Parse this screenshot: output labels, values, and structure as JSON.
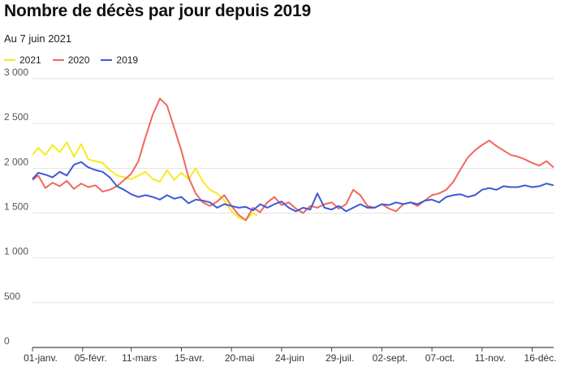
{
  "title": "Nombre de décès par jour depuis 2019",
  "subtitle": "Au 7 juin 2021",
  "chart_data": {
    "type": "line",
    "title": "Nombre de décès par jour depuis 2019",
    "subtitle": "Au 7 juin 2021",
    "xlabel": "",
    "ylabel": "",
    "ylim": [
      0,
      3000
    ],
    "yticks": [
      0,
      500,
      1000,
      1500,
      2000,
      2500,
      3000
    ],
    "ytick_labels": [
      "0",
      "500",
      "1 000",
      "1 500",
      "2 000",
      "2 500",
      "3 000"
    ],
    "xlim": [
      1,
      365
    ],
    "xticks": [
      1,
      36,
      70,
      105,
      140,
      175,
      210,
      245,
      280,
      315,
      350
    ],
    "xtick_labels": [
      "01-janv.",
      "05-févr.",
      "11-mars",
      "15-avr.",
      "20-mai",
      "24-juin",
      "29-juil.",
      "02-sept.",
      "07-oct.",
      "11-nov.",
      "16-déc."
    ],
    "grid": "horizontal",
    "legend": "top-left",
    "series": [
      {
        "name": "2021",
        "color": "#f5ec1e",
        "points": [
          [
            1,
            2150
          ],
          [
            5,
            2230
          ],
          [
            10,
            2150
          ],
          [
            15,
            2260
          ],
          [
            20,
            2180
          ],
          [
            25,
            2290
          ],
          [
            30,
            2130
          ],
          [
            35,
            2270
          ],
          [
            40,
            2100
          ],
          [
            45,
            2080
          ],
          [
            50,
            2060
          ],
          [
            55,
            1980
          ],
          [
            60,
            1920
          ],
          [
            65,
            1900
          ],
          [
            70,
            1880
          ],
          [
            75,
            1920
          ],
          [
            80,
            1960
          ],
          [
            85,
            1880
          ],
          [
            90,
            1850
          ],
          [
            95,
            1980
          ],
          [
            100,
            1870
          ],
          [
            105,
            1950
          ],
          [
            110,
            1880
          ],
          [
            115,
            2000
          ],
          [
            120,
            1850
          ],
          [
            125,
            1760
          ],
          [
            130,
            1720
          ],
          [
            135,
            1640
          ],
          [
            140,
            1520
          ],
          [
            145,
            1450
          ],
          [
            150,
            1420
          ],
          [
            155,
            1500
          ],
          [
            158,
            1470
          ]
        ]
      },
      {
        "name": "2020",
        "color": "#f2665e",
        "points": [
          [
            1,
            1870
          ],
          [
            5,
            1920
          ],
          [
            10,
            1780
          ],
          [
            15,
            1840
          ],
          [
            20,
            1800
          ],
          [
            25,
            1860
          ],
          [
            30,
            1770
          ],
          [
            35,
            1830
          ],
          [
            40,
            1790
          ],
          [
            45,
            1810
          ],
          [
            50,
            1740
          ],
          [
            55,
            1760
          ],
          [
            60,
            1800
          ],
          [
            65,
            1870
          ],
          [
            70,
            1940
          ],
          [
            75,
            2080
          ],
          [
            80,
            2350
          ],
          [
            85,
            2600
          ],
          [
            90,
            2780
          ],
          [
            95,
            2700
          ],
          [
            100,
            2450
          ],
          [
            105,
            2200
          ],
          [
            110,
            1900
          ],
          [
            115,
            1720
          ],
          [
            120,
            1620
          ],
          [
            125,
            1580
          ],
          [
            130,
            1630
          ],
          [
            135,
            1700
          ],
          [
            140,
            1580
          ],
          [
            145,
            1480
          ],
          [
            150,
            1420
          ],
          [
            155,
            1560
          ],
          [
            160,
            1510
          ],
          [
            165,
            1620
          ],
          [
            170,
            1680
          ],
          [
            175,
            1590
          ],
          [
            180,
            1620
          ],
          [
            185,
            1550
          ],
          [
            190,
            1500
          ],
          [
            195,
            1580
          ],
          [
            200,
            1560
          ],
          [
            205,
            1600
          ],
          [
            210,
            1620
          ],
          [
            215,
            1550
          ],
          [
            220,
            1600
          ],
          [
            225,
            1760
          ],
          [
            230,
            1700
          ],
          [
            235,
            1580
          ],
          [
            240,
            1560
          ],
          [
            245,
            1600
          ],
          [
            250,
            1550
          ],
          [
            255,
            1520
          ],
          [
            260,
            1600
          ],
          [
            265,
            1620
          ],
          [
            270,
            1580
          ],
          [
            275,
            1640
          ],
          [
            280,
            1700
          ],
          [
            285,
            1720
          ],
          [
            290,
            1760
          ],
          [
            295,
            1850
          ],
          [
            300,
            1990
          ],
          [
            305,
            2120
          ],
          [
            310,
            2200
          ],
          [
            315,
            2260
          ],
          [
            320,
            2310
          ],
          [
            325,
            2250
          ],
          [
            330,
            2200
          ],
          [
            335,
            2150
          ],
          [
            340,
            2130
          ],
          [
            345,
            2100
          ],
          [
            350,
            2060
          ],
          [
            355,
            2030
          ],
          [
            360,
            2080
          ],
          [
            365,
            2010
          ]
        ]
      },
      {
        "name": "2019",
        "color": "#3d5ad6",
        "points": [
          [
            1,
            1880
          ],
          [
            5,
            1950
          ],
          [
            10,
            1930
          ],
          [
            15,
            1900
          ],
          [
            20,
            1960
          ],
          [
            25,
            1920
          ],
          [
            30,
            2040
          ],
          [
            35,
            2070
          ],
          [
            40,
            2010
          ],
          [
            45,
            1980
          ],
          [
            50,
            1960
          ],
          [
            55,
            1900
          ],
          [
            60,
            1800
          ],
          [
            65,
            1760
          ],
          [
            70,
            1710
          ],
          [
            75,
            1680
          ],
          [
            80,
            1700
          ],
          [
            85,
            1680
          ],
          [
            90,
            1650
          ],
          [
            95,
            1700
          ],
          [
            100,
            1660
          ],
          [
            105,
            1680
          ],
          [
            110,
            1610
          ],
          [
            115,
            1650
          ],
          [
            120,
            1640
          ],
          [
            125,
            1620
          ],
          [
            130,
            1560
          ],
          [
            135,
            1600
          ],
          [
            140,
            1580
          ],
          [
            145,
            1560
          ],
          [
            150,
            1570
          ],
          [
            155,
            1530
          ],
          [
            160,
            1600
          ],
          [
            165,
            1560
          ],
          [
            170,
            1600
          ],
          [
            175,
            1630
          ],
          [
            180,
            1560
          ],
          [
            185,
            1520
          ],
          [
            190,
            1560
          ],
          [
            195,
            1540
          ],
          [
            200,
            1720
          ],
          [
            205,
            1560
          ],
          [
            210,
            1540
          ],
          [
            215,
            1580
          ],
          [
            220,
            1520
          ],
          [
            225,
            1560
          ],
          [
            230,
            1600
          ],
          [
            235,
            1560
          ],
          [
            240,
            1560
          ],
          [
            245,
            1600
          ],
          [
            250,
            1590
          ],
          [
            255,
            1620
          ],
          [
            260,
            1600
          ],
          [
            265,
            1620
          ],
          [
            270,
            1600
          ],
          [
            275,
            1640
          ],
          [
            280,
            1650
          ],
          [
            285,
            1620
          ],
          [
            290,
            1680
          ],
          [
            295,
            1700
          ],
          [
            300,
            1710
          ],
          [
            305,
            1680
          ],
          [
            310,
            1700
          ],
          [
            315,
            1760
          ],
          [
            320,
            1780
          ],
          [
            325,
            1760
          ],
          [
            330,
            1800
          ],
          [
            335,
            1790
          ],
          [
            340,
            1790
          ],
          [
            345,
            1810
          ],
          [
            350,
            1790
          ],
          [
            355,
            1800
          ],
          [
            360,
            1830
          ],
          [
            365,
            1810
          ]
        ]
      }
    ]
  }
}
